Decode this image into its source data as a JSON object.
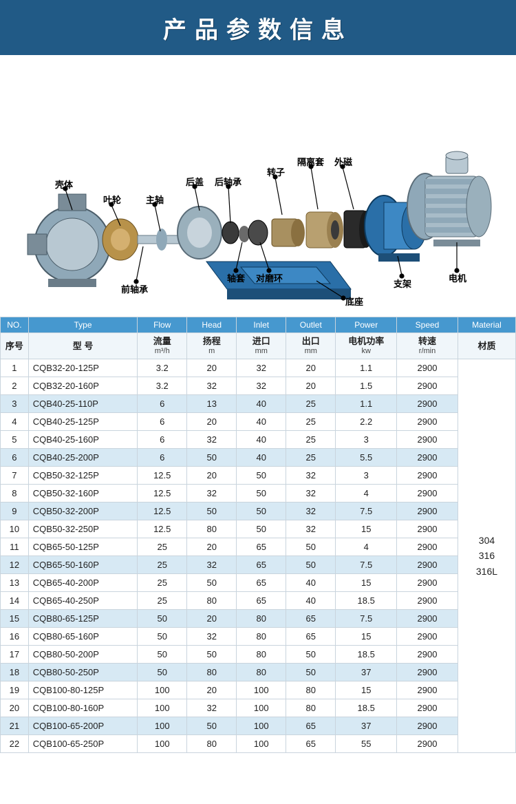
{
  "banner": {
    "title": "产品参数信息"
  },
  "diagram": {
    "labels": {
      "keti": "壳体",
      "yelun": "叶轮",
      "zhuzhou": "主轴",
      "hougai": "后盖",
      "houzhoucheng": "后轴承",
      "zhuanzi": "转子",
      "gelitao": "隔离套",
      "waici": "外磁",
      "qianzhoucheng": "前轴承",
      "zhoutao": "轴套",
      "duimohuan": "对磨环",
      "dizuo": "底座",
      "zhijia": "支架",
      "dianji": "电机"
    }
  },
  "table": {
    "headers_en": [
      "NO.",
      "Type",
      "Flow",
      "Head",
      "Inlet",
      "Outlet",
      "Power",
      "Speed",
      "Material"
    ],
    "headers_zh": [
      {
        "label": "序号",
        "unit": ""
      },
      {
        "label": "型 号",
        "unit": ""
      },
      {
        "label": "流量",
        "unit": "m³/h"
      },
      {
        "label": "扬程",
        "unit": "m"
      },
      {
        "label": "进口",
        "unit": "mm"
      },
      {
        "label": "出口",
        "unit": "mm"
      },
      {
        "label": "电机功率",
        "unit": "kw"
      },
      {
        "label": "转速",
        "unit": "r/min"
      },
      {
        "label": "材质",
        "unit": ""
      }
    ],
    "material": "304\n316\n316L",
    "rows": [
      {
        "no": "1",
        "type": "CQB32-20-125P",
        "flow": "3.2",
        "head": "20",
        "inlet": "32",
        "outlet": "20",
        "power": "1.1",
        "speed": "2900"
      },
      {
        "no": "2",
        "type": "CQB32-20-160P",
        "flow": "3.2",
        "head": "32",
        "inlet": "32",
        "outlet": "20",
        "power": "1.5",
        "speed": "2900"
      },
      {
        "no": "3",
        "type": "CQB40-25-110P",
        "flow": "6",
        "head": "13",
        "inlet": "40",
        "outlet": "25",
        "power": "1.1",
        "speed": "2900"
      },
      {
        "no": "4",
        "type": "CQB40-25-125P",
        "flow": "6",
        "head": "20",
        "inlet": "40",
        "outlet": "25",
        "power": "2.2",
        "speed": "2900"
      },
      {
        "no": "5",
        "type": "CQB40-25-160P",
        "flow": "6",
        "head": "32",
        "inlet": "40",
        "outlet": "25",
        "power": "3",
        "speed": "2900"
      },
      {
        "no": "6",
        "type": "CQB40-25-200P",
        "flow": "6",
        "head": "50",
        "inlet": "40",
        "outlet": "25",
        "power": "5.5",
        "speed": "2900"
      },
      {
        "no": "7",
        "type": "CQB50-32-125P",
        "flow": "12.5",
        "head": "20",
        "inlet": "50",
        "outlet": "32",
        "power": "3",
        "speed": "2900"
      },
      {
        "no": "8",
        "type": "CQB50-32-160P",
        "flow": "12.5",
        "head": "32",
        "inlet": "50",
        "outlet": "32",
        "power": "4",
        "speed": "2900"
      },
      {
        "no": "9",
        "type": "CQB50-32-200P",
        "flow": "12.5",
        "head": "50",
        "inlet": "50",
        "outlet": "32",
        "power": "7.5",
        "speed": "2900"
      },
      {
        "no": "10",
        "type": "CQB50-32-250P",
        "flow": "12.5",
        "head": "80",
        "inlet": "50",
        "outlet": "32",
        "power": "15",
        "speed": "2900"
      },
      {
        "no": "11",
        "type": "CQB65-50-125P",
        "flow": "25",
        "head": "20",
        "inlet": "65",
        "outlet": "50",
        "power": "4",
        "speed": "2900"
      },
      {
        "no": "12",
        "type": "CQB65-50-160P",
        "flow": "25",
        "head": "32",
        "inlet": "65",
        "outlet": "50",
        "power": "7.5",
        "speed": "2900"
      },
      {
        "no": "13",
        "type": "CQB65-40-200P",
        "flow": "25",
        "head": "50",
        "inlet": "65",
        "outlet": "40",
        "power": "15",
        "speed": "2900"
      },
      {
        "no": "14",
        "type": "CQB65-40-250P",
        "flow": "25",
        "head": "80",
        "inlet": "65",
        "outlet": "40",
        "power": "18.5",
        "speed": "2900"
      },
      {
        "no": "15",
        "type": "CQB80-65-125P",
        "flow": "50",
        "head": "20",
        "inlet": "80",
        "outlet": "65",
        "power": "7.5",
        "speed": "2900"
      },
      {
        "no": "16",
        "type": "CQB80-65-160P",
        "flow": "50",
        "head": "32",
        "inlet": "80",
        "outlet": "65",
        "power": "15",
        "speed": "2900"
      },
      {
        "no": "17",
        "type": "CQB80-50-200P",
        "flow": "50",
        "head": "50",
        "inlet": "80",
        "outlet": "50",
        "power": "18.5",
        "speed": "2900"
      },
      {
        "no": "18",
        "type": "CQB80-50-250P",
        "flow": "50",
        "head": "80",
        "inlet": "80",
        "outlet": "50",
        "power": "37",
        "speed": "2900"
      },
      {
        "no": "19",
        "type": "CQB100-80-125P",
        "flow": "100",
        "head": "20",
        "inlet": "100",
        "outlet": "80",
        "power": "15",
        "speed": "2900"
      },
      {
        "no": "20",
        "type": "CQB100-80-160P",
        "flow": "100",
        "head": "32",
        "inlet": "100",
        "outlet": "80",
        "power": "18.5",
        "speed": "2900"
      },
      {
        "no": "21",
        "type": "CQB100-65-200P",
        "flow": "100",
        "head": "50",
        "inlet": "100",
        "outlet": "65",
        "power": "37",
        "speed": "2900"
      },
      {
        "no": "22",
        "type": "CQB100-65-250P",
        "flow": "100",
        "head": "80",
        "inlet": "100",
        "outlet": "65",
        "power": "55",
        "speed": "2900"
      }
    ],
    "col_widths": [
      "34px",
      "132px",
      "60px",
      "60px",
      "60px",
      "60px",
      "74px",
      "74px",
      "70px"
    ],
    "alt_row_color": "#d7e9f4",
    "header_en_bg": "#4698cf"
  }
}
